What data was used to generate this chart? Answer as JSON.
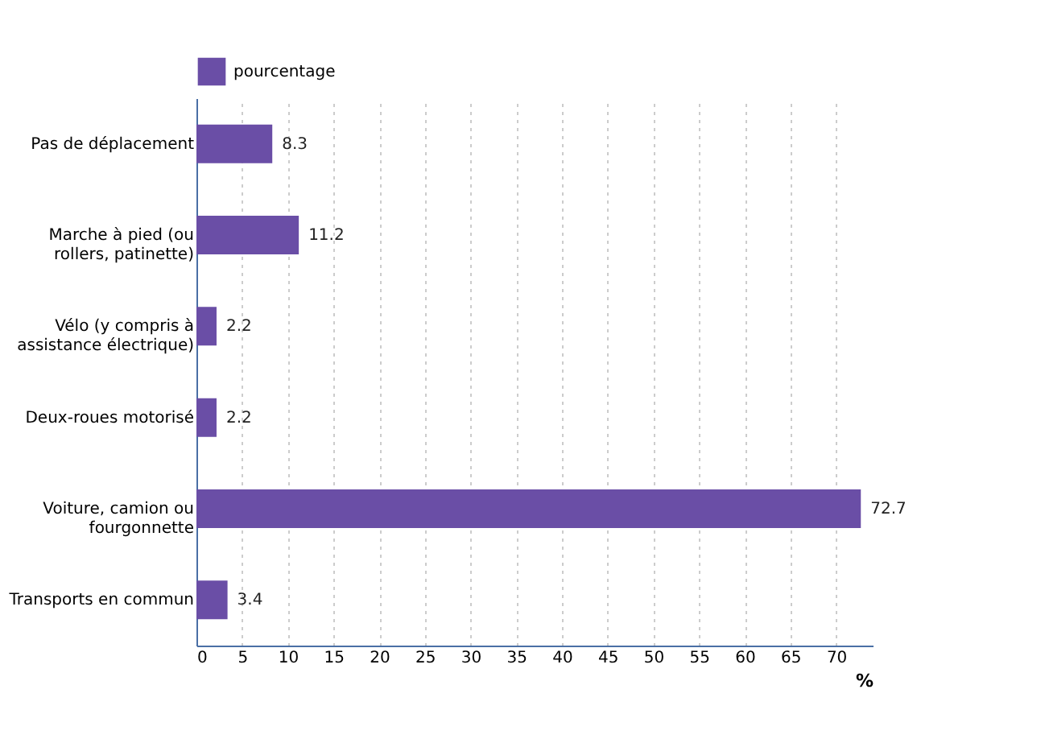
{
  "chart_data": {
    "type": "bar",
    "orientation": "horizontal",
    "categories": [
      "Pas de déplacement",
      "Marche à pied (ou rollers, patinette)",
      "Vélo (y compris à assistance électrique)",
      "Deux-roues motorisé",
      "Voiture, camion ou fourgonnette",
      "Transports en commun"
    ],
    "series": [
      {
        "name": "pourcentage",
        "color": "#6a4ea6",
        "values": [
          8.3,
          11.2,
          2.2,
          2.2,
          72.7,
          3.4
        ]
      }
    ],
    "xlabel": "%",
    "xlim": [
      0,
      74
    ],
    "xticks": [
      0,
      5,
      10,
      15,
      20,
      25,
      30,
      35,
      40,
      45,
      50,
      55,
      60,
      65,
      70
    ],
    "grid": "x",
    "legend": "top left",
    "data_labels": true
  }
}
